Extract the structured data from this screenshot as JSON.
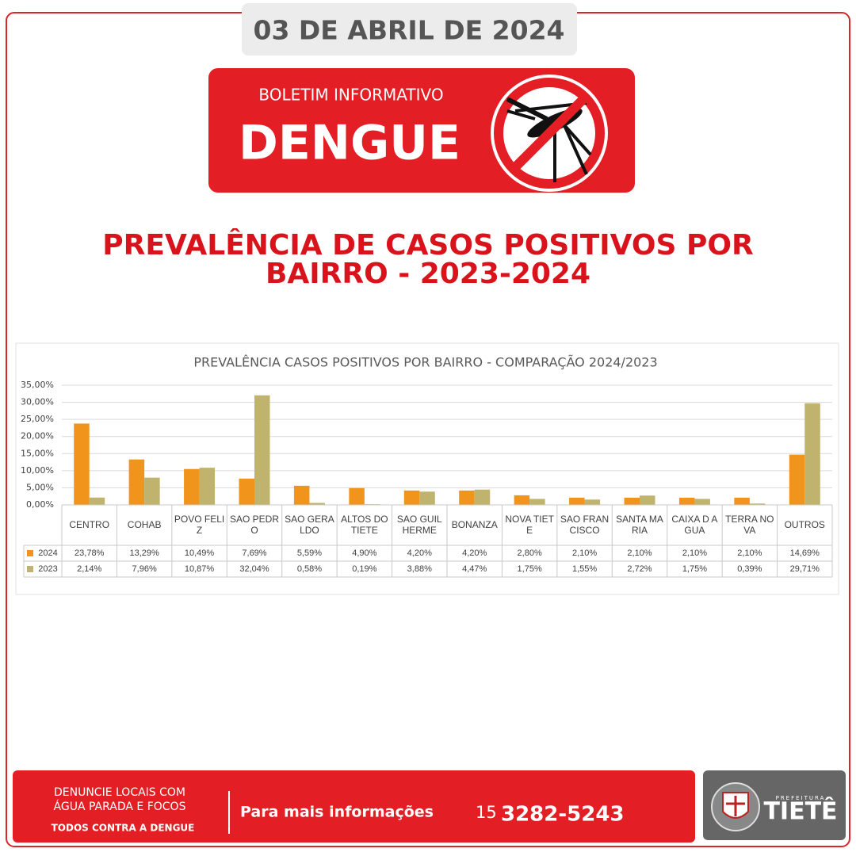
{
  "header": {
    "date": "03 DE ABRIL DE 2024",
    "kicker": "BOLETIM INFORMATIVO",
    "headline": "DENGUE"
  },
  "title_lines": [
    "PREVALÊNCIA DE CASOS POSITIVOS POR",
    "BAIRRO - 2023-2024"
  ],
  "chart_data": {
    "type": "bar",
    "title": "PREVALÊNCIA CASOS POSITIVOS POR BAIRRO - COMPARAÇÃO 2024/2023",
    "categories": [
      "CENTRO",
      "COHAB",
      "POVO FELIZ",
      "SAO PEDRO",
      "SAO GERALDO",
      "ALTOS DO TIETE",
      "SAO GUILHERME",
      "BONANZA",
      "NOVA TIETE",
      "SAO FRANCISCO",
      "SANTA MARIA",
      "CAIXA D AGUA",
      "TERRA NOVA",
      "OUTROS"
    ],
    "series": [
      {
        "name": "2024",
        "color": "#f0941c",
        "values": [
          23.78,
          13.29,
          10.49,
          7.69,
          5.59,
          4.9,
          4.2,
          4.2,
          2.8,
          2.1,
          2.1,
          2.1,
          2.1,
          14.69
        ],
        "value_labels": [
          "23,78%",
          "13,29%",
          "10,49%",
          "7,69%",
          "5,59%",
          "4,90%",
          "4,20%",
          "4,20%",
          "2,80%",
          "2,10%",
          "2,10%",
          "2,10%",
          "2,10%",
          "14,69%"
        ]
      },
      {
        "name": "2023",
        "color": "#c0b36e",
        "values": [
          2.14,
          7.96,
          10.87,
          32.04,
          0.58,
          0.19,
          3.88,
          4.47,
          1.75,
          1.55,
          2.72,
          1.75,
          0.39,
          29.71
        ],
        "value_labels": [
          "2,14%",
          "7,96%",
          "10,87%",
          "32,04%",
          "0,58%",
          "0,19%",
          "3,88%",
          "4,47%",
          "1,75%",
          "1,55%",
          "2,72%",
          "1,75%",
          "0,39%",
          "29,71%"
        ]
      }
    ],
    "ylim": [
      0,
      35
    ],
    "yticks": [
      {
        "value": 0,
        "label": "0,00%"
      },
      {
        "value": 5,
        "label": "5,00%"
      },
      {
        "value": 10,
        "label": "10,00%"
      },
      {
        "value": 15,
        "label": "15,00%"
      },
      {
        "value": 20,
        "label": "20,00%"
      },
      {
        "value": 25,
        "label": "25,00%"
      },
      {
        "value": 30,
        "label": "30,00%"
      },
      {
        "value": 35,
        "label": "35,00%"
      }
    ],
    "grid": true
  },
  "footer": {
    "left_lines": [
      "DENUNCIE LOCAIS COM",
      "ÁGUA PARADA E FOCOS"
    ],
    "slogan": "TODOS CONTRA A DENGUE",
    "info_label": "Para mais informações",
    "area_code": "15",
    "phone": "3282-5243"
  },
  "logo": {
    "small": "PREFEITURA",
    "name": "TIETÊ"
  }
}
